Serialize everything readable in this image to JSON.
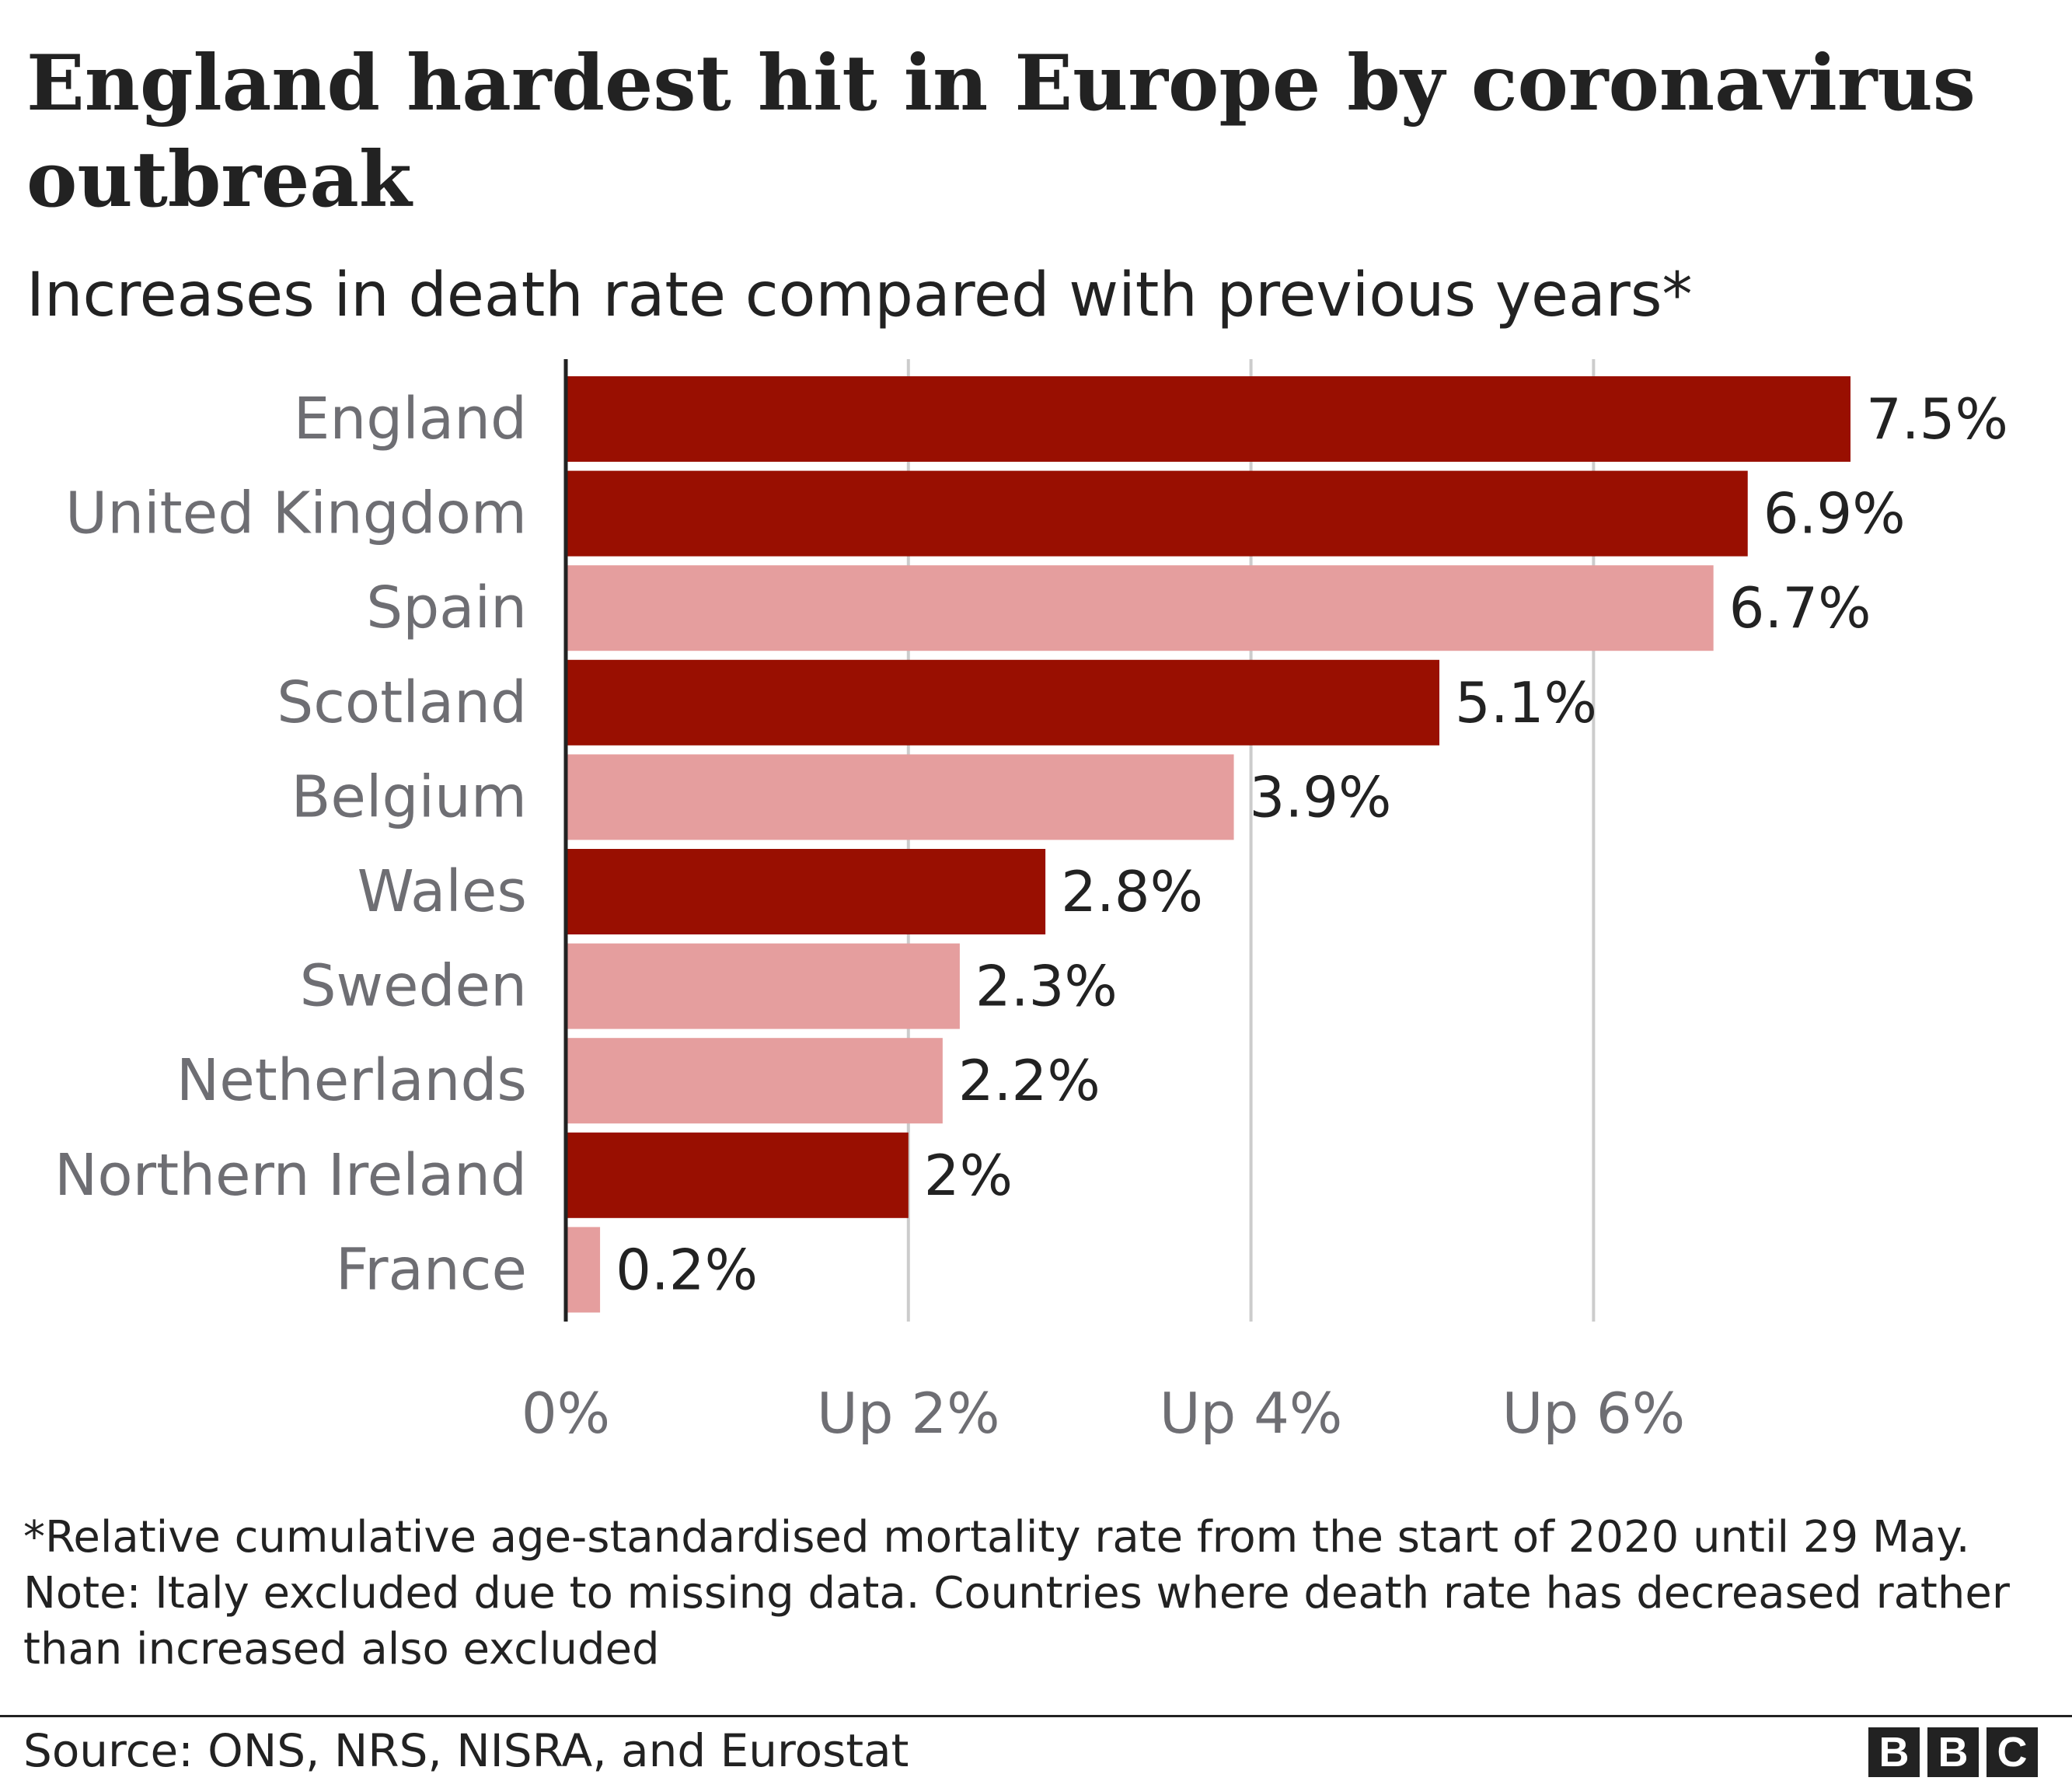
{
  "chart_data": {
    "type": "bar",
    "orientation": "horizontal",
    "title": "England hardest hit in Europe by coronavirus outbreak",
    "subtitle": "Increases in death rate compared with previous years*",
    "categories": [
      "England",
      "United Kingdom",
      "Spain",
      "Scotland",
      "Belgium",
      "Wales",
      "Sweden",
      "Netherlands",
      "Northern Ireland",
      "France"
    ],
    "values": [
      7.5,
      6.9,
      6.7,
      5.1,
      3.9,
      2.8,
      2.3,
      2.2,
      2.0,
      0.2
    ],
    "value_labels": [
      "7.5%",
      "6.9%",
      "6.7%",
      "5.1%",
      "3.9%",
      "2.8%",
      "2.3%",
      "2.2%",
      "2%",
      "0.2%"
    ],
    "group": [
      "uk",
      "uk",
      "other",
      "uk",
      "other",
      "uk",
      "other",
      "other",
      "uk",
      "other"
    ],
    "colors": {
      "uk": "#990f01",
      "other": "#e59e9e",
      "grid": "#cccccc",
      "axis": "#222222"
    },
    "x_ticks": [
      0,
      2,
      4,
      6
    ],
    "x_tick_labels": [
      "0%",
      "Up 2%",
      "Up 4%",
      "Up 6%"
    ],
    "xlim": [
      0,
      7.55
    ],
    "grid": true,
    "xlabel": "",
    "ylabel": ""
  },
  "footnote": "*Relative cumulative age-standardised mortality rate from the start of 2020 until 29 May. Note: Italy excluded due to missing data. Countries where death rate has decreased rather than increased also excluded",
  "source": "Source: ONS, NRS, NISRA, and Eurostat",
  "logo": {
    "letters": [
      "B",
      "B",
      "C"
    ]
  }
}
